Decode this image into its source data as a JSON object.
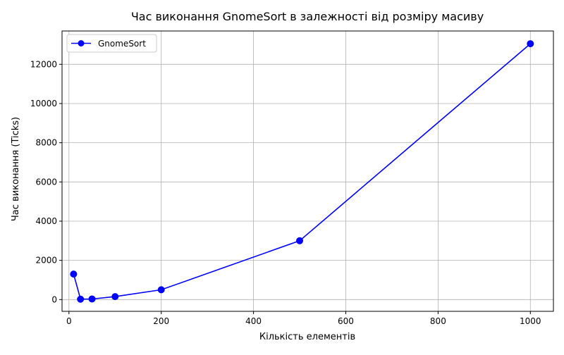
{
  "chart_data": {
    "type": "line",
    "title": "Час виконання GnomeSort в залежності від розміру масиву",
    "xlabel": "Кількість елементів",
    "ylabel": "Час виконання (Ticks)",
    "xlim": [
      -15,
      1050
    ],
    "ylim": [
      -600,
      13700
    ],
    "xticks": [
      0,
      200,
      400,
      600,
      800,
      1000
    ],
    "yticks": [
      0,
      2000,
      4000,
      6000,
      8000,
      10000,
      12000
    ],
    "xtick_labels": [
      "0",
      "200",
      "400",
      "600",
      "800",
      "1000"
    ],
    "ytick_labels": [
      "0",
      "2000",
      "4000",
      "6000",
      "8000",
      "10000",
      "12000"
    ],
    "grid": true,
    "legend_position": "top-left",
    "series": [
      {
        "name": "GnomeSort",
        "color": "#0000ff",
        "marker": "circle",
        "x": [
          10,
          25,
          50,
          100,
          200,
          500,
          1000
        ],
        "y": [
          1300,
          20,
          30,
          150,
          500,
          3000,
          13050
        ]
      }
    ]
  }
}
